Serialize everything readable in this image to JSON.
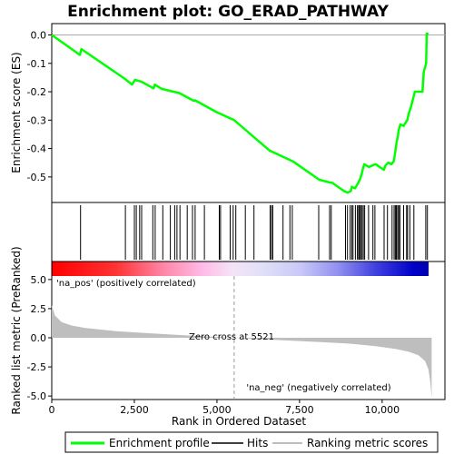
{
  "chart_data": {
    "type": "line",
    "title": "Enrichment plot: GO_ERAD_PATHWAY",
    "colors": {
      "es_line": "#00ff00",
      "hits": "#000000",
      "metric_fill": "#bebebe",
      "zero_cross_line": "#9a9a9a"
    },
    "top_panel": {
      "ylabel": "Enrichment score (ES)",
      "ylim": [
        -0.59,
        0.04
      ],
      "yticks": [
        0.0,
        -0.1,
        -0.2,
        -0.3,
        -0.4,
        -0.5
      ],
      "ytick_labels": [
        "0.0",
        "-0.1",
        "-0.2",
        "-0.3",
        "-0.4",
        "-0.5"
      ],
      "series": [
        {
          "name": "Enrichment profile",
          "x": [
            0,
            850,
            900,
            2220,
            2430,
            2520,
            2720,
            3080,
            3120,
            3330,
            3870,
            4300,
            4330,
            5000,
            5520,
            6600,
            6650,
            7300,
            8100,
            8430,
            8480,
            8850,
            8950,
            9050,
            9080,
            9180,
            9280,
            9340,
            9380,
            9420,
            9460,
            9600,
            9700,
            9800,
            10050,
            10100,
            10180,
            10280,
            10350,
            10380,
            10410,
            10440,
            10480,
            10500,
            10550,
            10650,
            10760,
            10810,
            10870,
            10990,
            11220,
            11260,
            11330,
            11350,
            11400
          ],
          "y": [
            0.0,
            -0.07,
            -0.05,
            -0.155,
            -0.175,
            -0.158,
            -0.165,
            -0.188,
            -0.175,
            -0.19,
            -0.205,
            -0.232,
            -0.23,
            -0.272,
            -0.3,
            -0.408,
            -0.41,
            -0.445,
            -0.51,
            -0.52,
            -0.52,
            -0.55,
            -0.555,
            -0.55,
            -0.535,
            -0.54,
            -0.52,
            -0.505,
            -0.49,
            -0.47,
            -0.455,
            -0.465,
            -0.46,
            -0.455,
            -0.475,
            -0.46,
            -0.45,
            -0.455,
            -0.445,
            -0.425,
            -0.4,
            -0.375,
            -0.355,
            -0.335,
            -0.315,
            -0.32,
            -0.3,
            -0.275,
            -0.255,
            -0.2,
            -0.2,
            -0.13,
            -0.1,
            0.005,
            0.003
          ]
        }
      ]
    },
    "hits_panel": {
      "hit_positions": [
        870,
        2230,
        2500,
        2560,
        2660,
        2720,
        3060,
        3130,
        3360,
        3590,
        3720,
        3790,
        3880,
        4100,
        4260,
        4340,
        4620,
        5070,
        5110,
        5400,
        5490,
        5570,
        5860,
        6120,
        6610,
        6650,
        6690,
        7000,
        7210,
        7280,
        8080,
        8410,
        8460,
        8890,
        8950,
        9030,
        9080,
        9120,
        9190,
        9250,
        9290,
        9320,
        9350,
        9390,
        9430,
        9470,
        9590,
        9720,
        9780,
        10060,
        10160,
        10300,
        10360,
        10400,
        10430,
        10470,
        10500,
        10540,
        10650,
        10740,
        10770,
        10840,
        10960,
        11320,
        11370
      ]
    },
    "metric_panel": {
      "ylabel": "Ranked list metric (PreRanked)",
      "xlabel": "Rank in Ordered Dataset",
      "ylim": [
        -5.3,
        5.3
      ],
      "yticks": [
        5.0,
        2.5,
        0.0,
        -2.5,
        -5.0
      ],
      "ytick_labels": [
        "5.0",
        "2.5",
        "0.0",
        "-2.5",
        "-5.0"
      ],
      "xlim": [
        0,
        11900
      ],
      "xticks": [
        0,
        2500,
        5000,
        7500,
        10000
      ],
      "xtick_labels": [
        "0",
        "2,500",
        "5,000",
        "7,500",
        "10,000"
      ],
      "metric_x": [
        0,
        100,
        300,
        600,
        1000,
        2000,
        3000,
        4000,
        5000,
        5521,
        6000,
        7000,
        8000,
        9000,
        9800,
        10400,
        10800,
        11100,
        11300,
        11400,
        11450,
        11500
      ],
      "metric_y": [
        2.8,
        1.9,
        1.35,
        1.05,
        0.85,
        0.55,
        0.38,
        0.22,
        0.08,
        0.0,
        -0.08,
        -0.22,
        -0.35,
        -0.5,
        -0.72,
        -0.95,
        -1.2,
        -1.5,
        -2.0,
        -2.7,
        -3.6,
        -5.1
      ],
      "zero_cross": 5521,
      "zero_cross_label": "Zero cross at 5521",
      "pos_label": "'na_pos' (positively correlated)",
      "neg_label": "'na_neg' (negatively correlated)",
      "pos_label_color": "#cc0000",
      "neg_label_color": "#0000cc"
    },
    "legend": {
      "placement": "bottom",
      "items": [
        {
          "label": "Enrichment profile",
          "color": "#00ff00"
        },
        {
          "label": "Hits",
          "color": "#000000"
        },
        {
          "label": "Ranking metric scores",
          "color": "#bebebe"
        }
      ]
    }
  }
}
